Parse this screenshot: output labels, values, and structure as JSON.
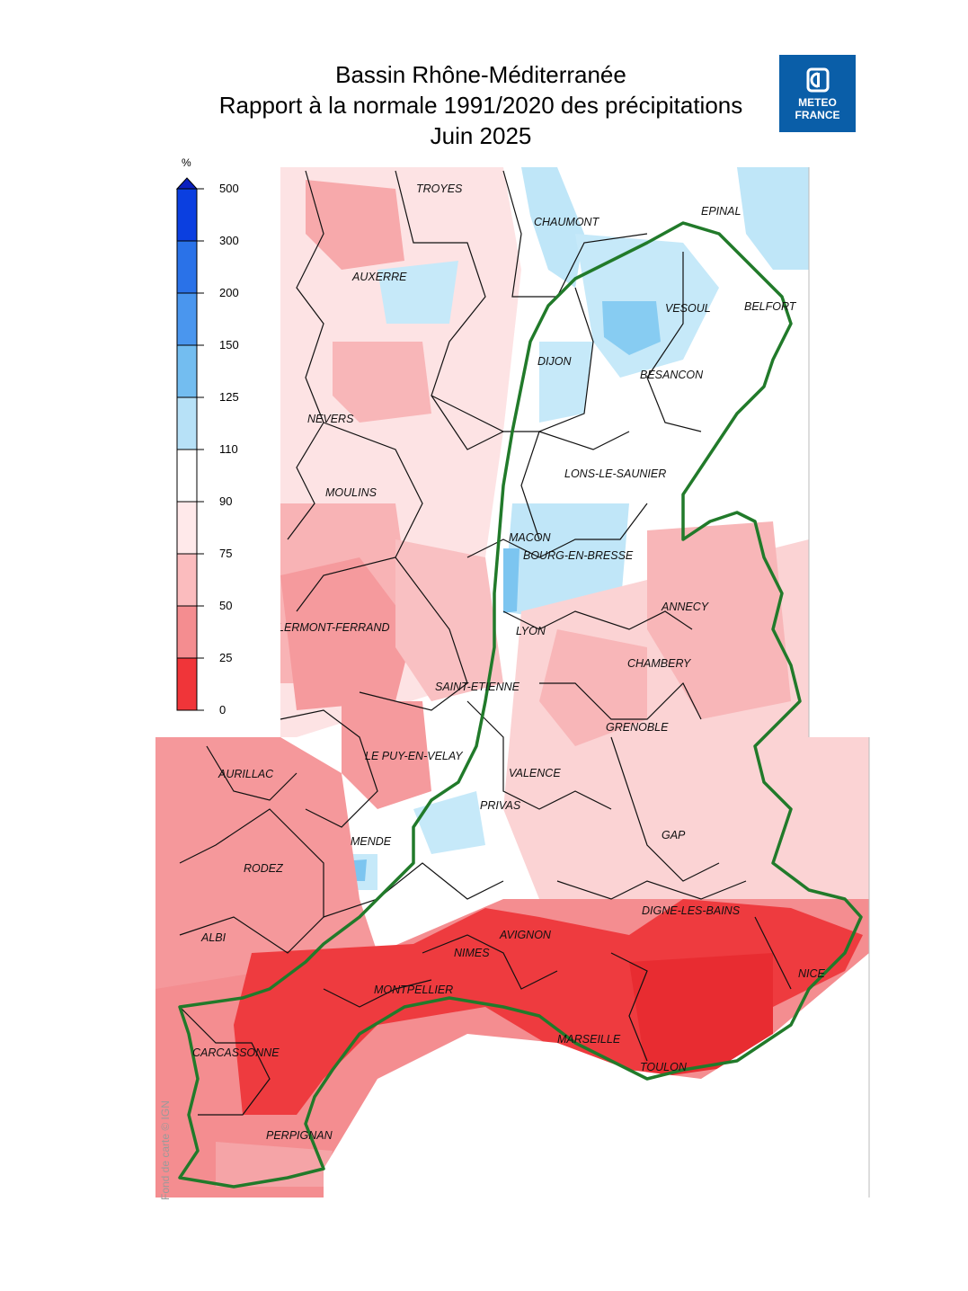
{
  "title": {
    "line1": "Bassin Rhône-Méditerranée",
    "line2": "Rapport à la normale 1991/2020 des précipitations",
    "line3": "Juin 2025"
  },
  "logo": {
    "line1": "METEO",
    "line2": "FRANCE",
    "icon": "meteo-france-emblem-icon"
  },
  "legend": {
    "unit": "%",
    "levels": [
      "500",
      "300",
      "200",
      "150",
      "125",
      "110",
      "90",
      "75",
      "50",
      "25",
      "0"
    ],
    "colors": [
      "#0b3fe0",
      "#2a72e8",
      "#4a96ee",
      "#73bdf0",
      "#b7e1f7",
      "#ffffff",
      "#ffe9ea",
      "#fbbcbe",
      "#f48d90",
      "#f03539"
    ]
  },
  "cities": [
    "TROYES",
    "CHAUMONT",
    "EPINAL",
    "AUXERRE",
    "VESOUL",
    "BELFORT",
    "DIJON",
    "BESANCON",
    "NEVERS",
    "LONS-LE-SAUNIER",
    "MOULINS",
    "MACON",
    "BOURG-EN-BRESSE",
    "ANNECY",
    "CLERMONT-FERRAND",
    "LYON",
    "CHAMBERY",
    "SAINT-ETIENNE",
    "GRENOBLE",
    "AURILLAC",
    "LE PUY-EN-VELAY",
    "VALENCE",
    "PRIVAS",
    "GAP",
    "MENDE",
    "RODEZ",
    "DIGNE-LES-BAINS",
    "AVIGNON",
    "ALBI",
    "NIMES",
    "NICE",
    "MONTPELLIER",
    "CARCASSONNE",
    "MARSEILLE",
    "TOULON",
    "PERPIGNAN"
  ],
  "credit": "Fond de carte © IGN",
  "colors": {
    "basin_outline": "#217a2a",
    "logo_bg": "#0a5ea8"
  }
}
